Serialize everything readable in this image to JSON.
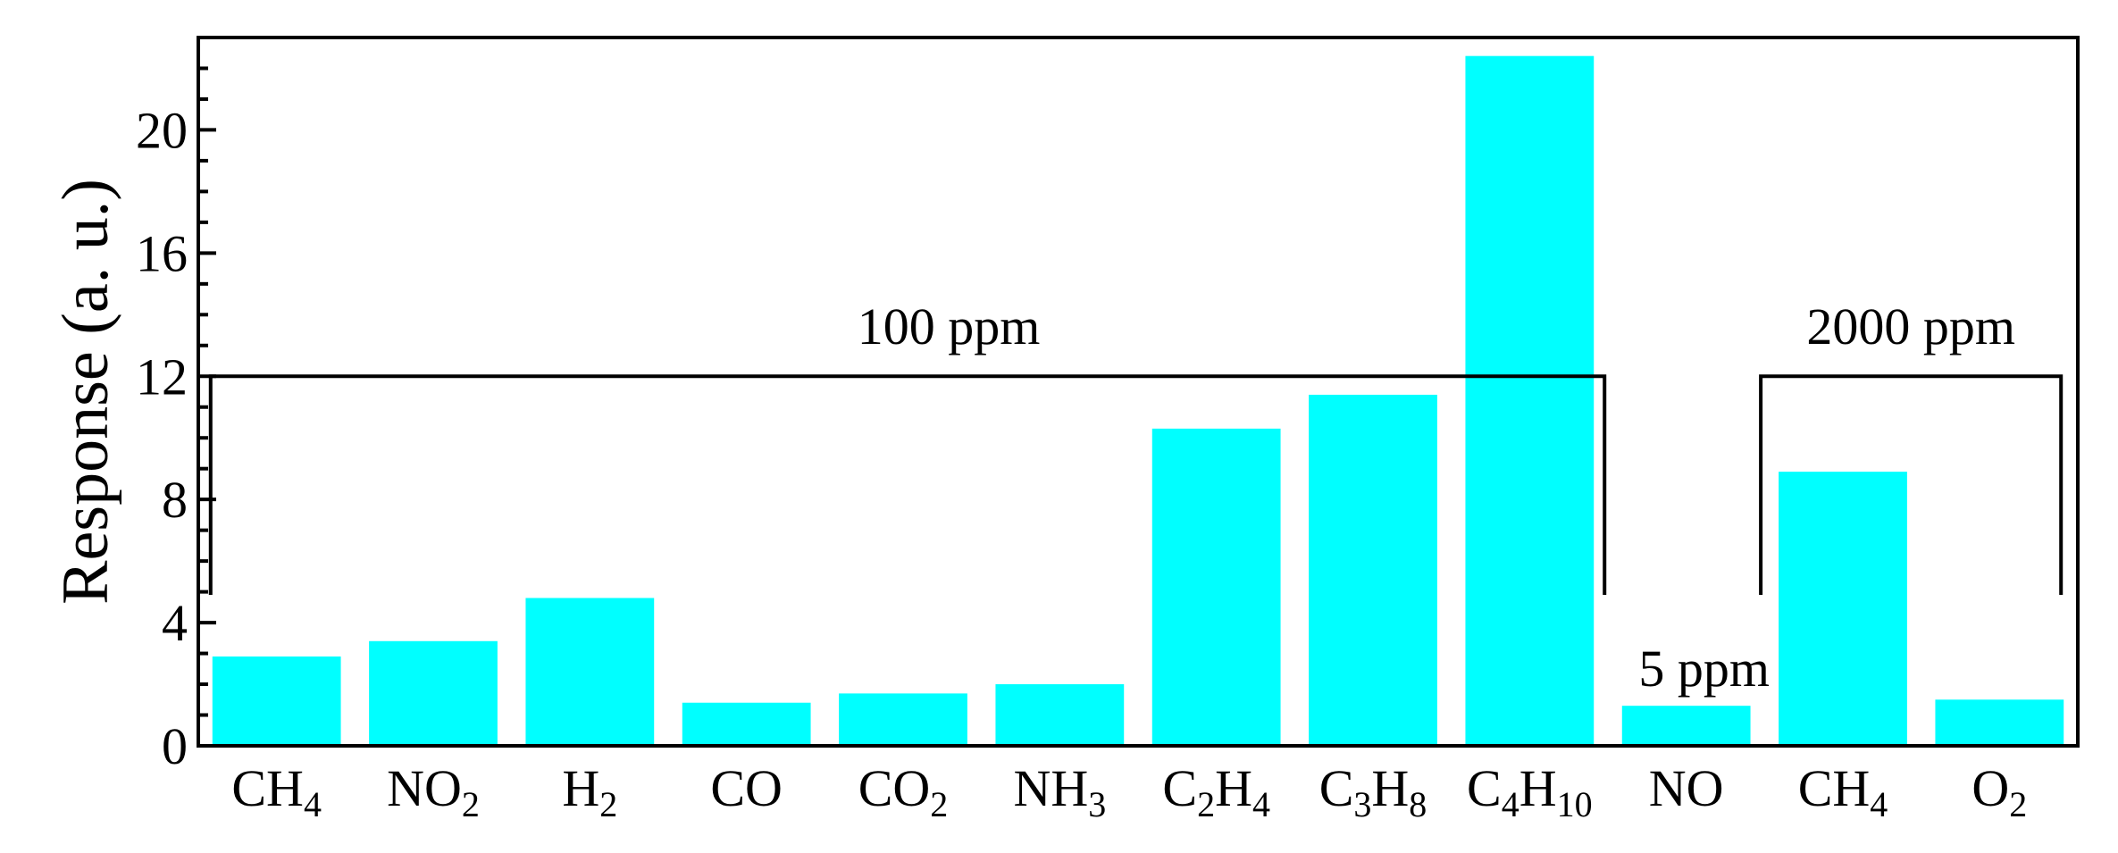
{
  "chart_data": {
    "type": "bar",
    "categories": [
      {
        "main": "CH",
        "sub": "4"
      },
      {
        "main": "NO",
        "sub": "2"
      },
      {
        "main": "H",
        "sub": "2"
      },
      {
        "main": "CO",
        "sub": ""
      },
      {
        "main": "CO",
        "sub": "2"
      },
      {
        "main": "NH",
        "sub": "3"
      },
      {
        "main": "C",
        "sub": "2",
        "main2": "H",
        "sub2": "4"
      },
      {
        "main": "C",
        "sub": "3",
        "main2": "H",
        "sub2": "8"
      },
      {
        "main": "C",
        "sub": "4",
        "main2": "H",
        "sub2": "10"
      },
      {
        "main": "NO",
        "sub": ""
      },
      {
        "main": "CH",
        "sub": "4"
      },
      {
        "main": "O",
        "sub": "2"
      }
    ],
    "values": [
      2.9,
      3.4,
      4.8,
      1.4,
      1.7,
      2.0,
      10.3,
      11.4,
      22.4,
      1.3,
      8.9,
      1.5
    ],
    "ylabel": "Response (a. u.)",
    "xlabel": "",
    "ylim": [
      0,
      23
    ],
    "yticks": [
      0,
      4,
      8,
      12,
      16,
      20
    ],
    "bar_color": "#00ffff",
    "grid": false,
    "annotations": [
      {
        "text": "100 ppm",
        "from_index": 0,
        "to_index": 8,
        "level": 12
      },
      {
        "text": "5 ppm",
        "index": 9
      },
      {
        "text": "2000 ppm",
        "from_index": 10,
        "to_index": 11,
        "level": 12
      }
    ]
  }
}
